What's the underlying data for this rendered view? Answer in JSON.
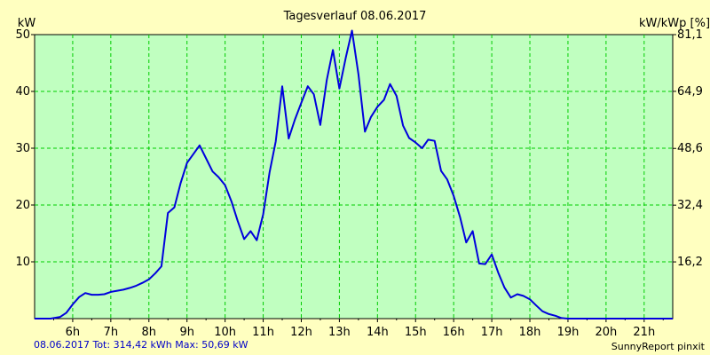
{
  "chart_data": {
    "type": "line",
    "title": "Tagesverlauf 08.06.2017",
    "ylabel": "kW",
    "ylabel_right": "kW/kWp [%]",
    "ylim": [
      0,
      50
    ],
    "xlim": [
      5.0,
      21.75
    ],
    "yticks": [
      10,
      20,
      30,
      40,
      50
    ],
    "yticks_labels": [
      "10",
      "20",
      "30",
      "40",
      "50"
    ],
    "right_ticks": [
      16.2,
      32.4,
      48.6,
      64.9,
      81.1
    ],
    "right_tick_labels": [
      "16,2",
      "32,4",
      "48,6",
      "64,9",
      "81,1"
    ],
    "right_ylim": [
      0,
      81.1
    ],
    "xticks": [
      6,
      7,
      8,
      9,
      10,
      11,
      12,
      13,
      14,
      15,
      16,
      17,
      18,
      19,
      20,
      21
    ],
    "xtick_labels": [
      "6h",
      "7h",
      "8h",
      "9h",
      "10h",
      "11h",
      "12h",
      "13h",
      "14h",
      "15h",
      "16h",
      "17h",
      "18h",
      "19h",
      "20h",
      "21h"
    ],
    "grid": true,
    "series": [
      {
        "name": "kW",
        "color": "#0000dd",
        "x": [
          5.0,
          5.42,
          5.67,
          5.83,
          6.0,
          6.17,
          6.33,
          6.5,
          6.67,
          6.83,
          7.0,
          7.17,
          7.33,
          7.5,
          7.67,
          7.83,
          8.0,
          8.17,
          8.33,
          8.5,
          8.67,
          8.83,
          9.0,
          9.17,
          9.33,
          9.5,
          9.67,
          9.83,
          10.0,
          10.17,
          10.33,
          10.5,
          10.67,
          10.83,
          11.0,
          11.17,
          11.33,
          11.5,
          11.67,
          11.83,
          12.0,
          12.17,
          12.33,
          12.5,
          12.67,
          12.83,
          13.0,
          13.17,
          13.33,
          13.5,
          13.67,
          13.83,
          14.0,
          14.17,
          14.33,
          14.5,
          14.67,
          14.83,
          15.0,
          15.17,
          15.33,
          15.5,
          15.67,
          15.83,
          16.0,
          16.17,
          16.33,
          16.5,
          16.67,
          16.83,
          17.0,
          17.17,
          17.33,
          17.5,
          17.67,
          17.83,
          18.0,
          18.17,
          18.33,
          18.5,
          18.67,
          18.83,
          19.0,
          19.17,
          19.33,
          19.5,
          19.67,
          19.83,
          20.0,
          20.17,
          20.33,
          20.5,
          20.67,
          20.83,
          21.0,
          21.17,
          21.33,
          21.5,
          21.75
        ],
        "values": [
          0,
          0,
          0.3,
          1.0,
          2.5,
          3.8,
          4.5,
          4.2,
          4.2,
          4.3,
          4.7,
          4.9,
          5.1,
          5.4,
          5.8,
          6.3,
          6.9,
          8.0,
          9.2,
          18.6,
          19.6,
          23.8,
          27.4,
          29.0,
          30.5,
          28.2,
          25.9,
          24.9,
          23.5,
          20.6,
          17.2,
          14.0,
          15.4,
          13.8,
          18.4,
          25.8,
          31.2,
          40.9,
          31.7,
          35.0,
          38.0,
          40.9,
          39.5,
          34.1,
          42.0,
          47.3,
          40.5,
          46.0,
          50.7,
          43.0,
          32.9,
          35.5,
          37.3,
          38.5,
          41.3,
          39.2,
          34.0,
          31.8,
          31.0,
          30.0,
          31.5,
          31.3,
          26.0,
          24.5,
          21.6,
          17.8,
          13.4,
          15.4,
          9.7,
          9.6,
          11.3,
          8.1,
          5.5,
          3.7,
          4.3,
          4.0,
          3.4,
          2.3,
          1.3,
          0.8,
          0.5,
          0.1,
          0,
          0,
          0,
          0,
          0,
          0,
          0,
          0,
          0,
          0,
          0,
          0,
          0,
          0,
          0,
          0,
          0
        ],
        "x_trim": 0
      }
    ]
  },
  "footer": {
    "summary": "08.06.2017 Tot: 314,42 kWh Max: 50,69 kW",
    "brand": "SunnyReport pinxit"
  },
  "colors": {
    "background": "#ffffc0",
    "plot_area": "#c0ffc0",
    "grid": "#00cc00",
    "line": "#0000dd",
    "footer_text": "#0000c8"
  }
}
